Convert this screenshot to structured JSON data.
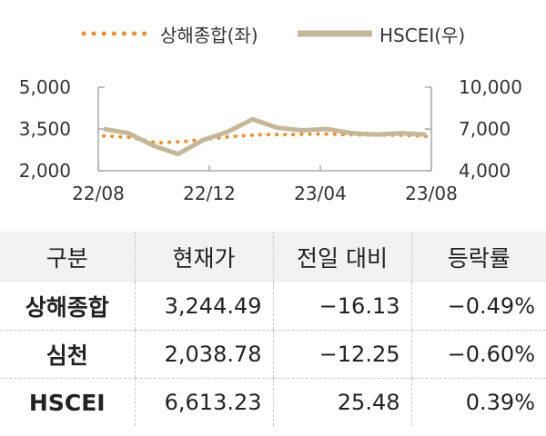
{
  "chart_data": {
    "type": "line",
    "x_tick_labels": [
      "22/08",
      "22/12",
      "23/04",
      "23/08"
    ],
    "y_left": {
      "range": [
        2000,
        5000
      ],
      "ticks": [
        "2,000",
        "3,500",
        "5,000"
      ]
    },
    "y_right": {
      "range": [
        4000,
        10000
      ],
      "ticks": [
        "4,000",
        "7,000",
        "10,000"
      ]
    },
    "series": [
      {
        "name": "상해종합(좌)",
        "axis": "left",
        "style": "dotted",
        "color": "#f28b2e",
        "x": [
          "22/08",
          "22/09",
          "22/10",
          "22/11",
          "22/12",
          "23/01",
          "23/02",
          "23/03",
          "23/04",
          "23/05",
          "23/06",
          "23/07",
          "23/08"
        ],
        "values": [
          3250,
          3200,
          3000,
          3050,
          3150,
          3250,
          3300,
          3300,
          3320,
          3300,
          3280,
          3280,
          3240
        ]
      },
      {
        "name": "HSCEI(우)",
        "axis": "right",
        "style": "solid",
        "color": "#c5b799",
        "x": [
          "22/08",
          "22/09",
          "22/10",
          "22/10b",
          "22/11",
          "22/12",
          "23/01",
          "23/02",
          "23/03",
          "23/04",
          "23/05",
          "23/06",
          "23/07",
          "23/08"
        ],
        "values": [
          7000,
          6700,
          5800,
          5200,
          6200,
          6800,
          7700,
          7100,
          6900,
          7000,
          6700,
          6600,
          6700,
          6600
        ]
      }
    ],
    "grid": false,
    "legend_position": "top"
  },
  "table": {
    "headers": [
      "구분",
      "현재가",
      "전일 대비",
      "등락률"
    ],
    "rows": [
      {
        "name": "상해종합",
        "price": "3,244.49",
        "change": "−16.13",
        "rate": "−0.49%"
      },
      {
        "name": "심천",
        "price": "2,038.78",
        "change": "−12.25",
        "rate": "−0.60%"
      },
      {
        "name": "HSCEI",
        "price": "6,613.23",
        "change": "25.48",
        "rate": "0.39%"
      }
    ]
  }
}
